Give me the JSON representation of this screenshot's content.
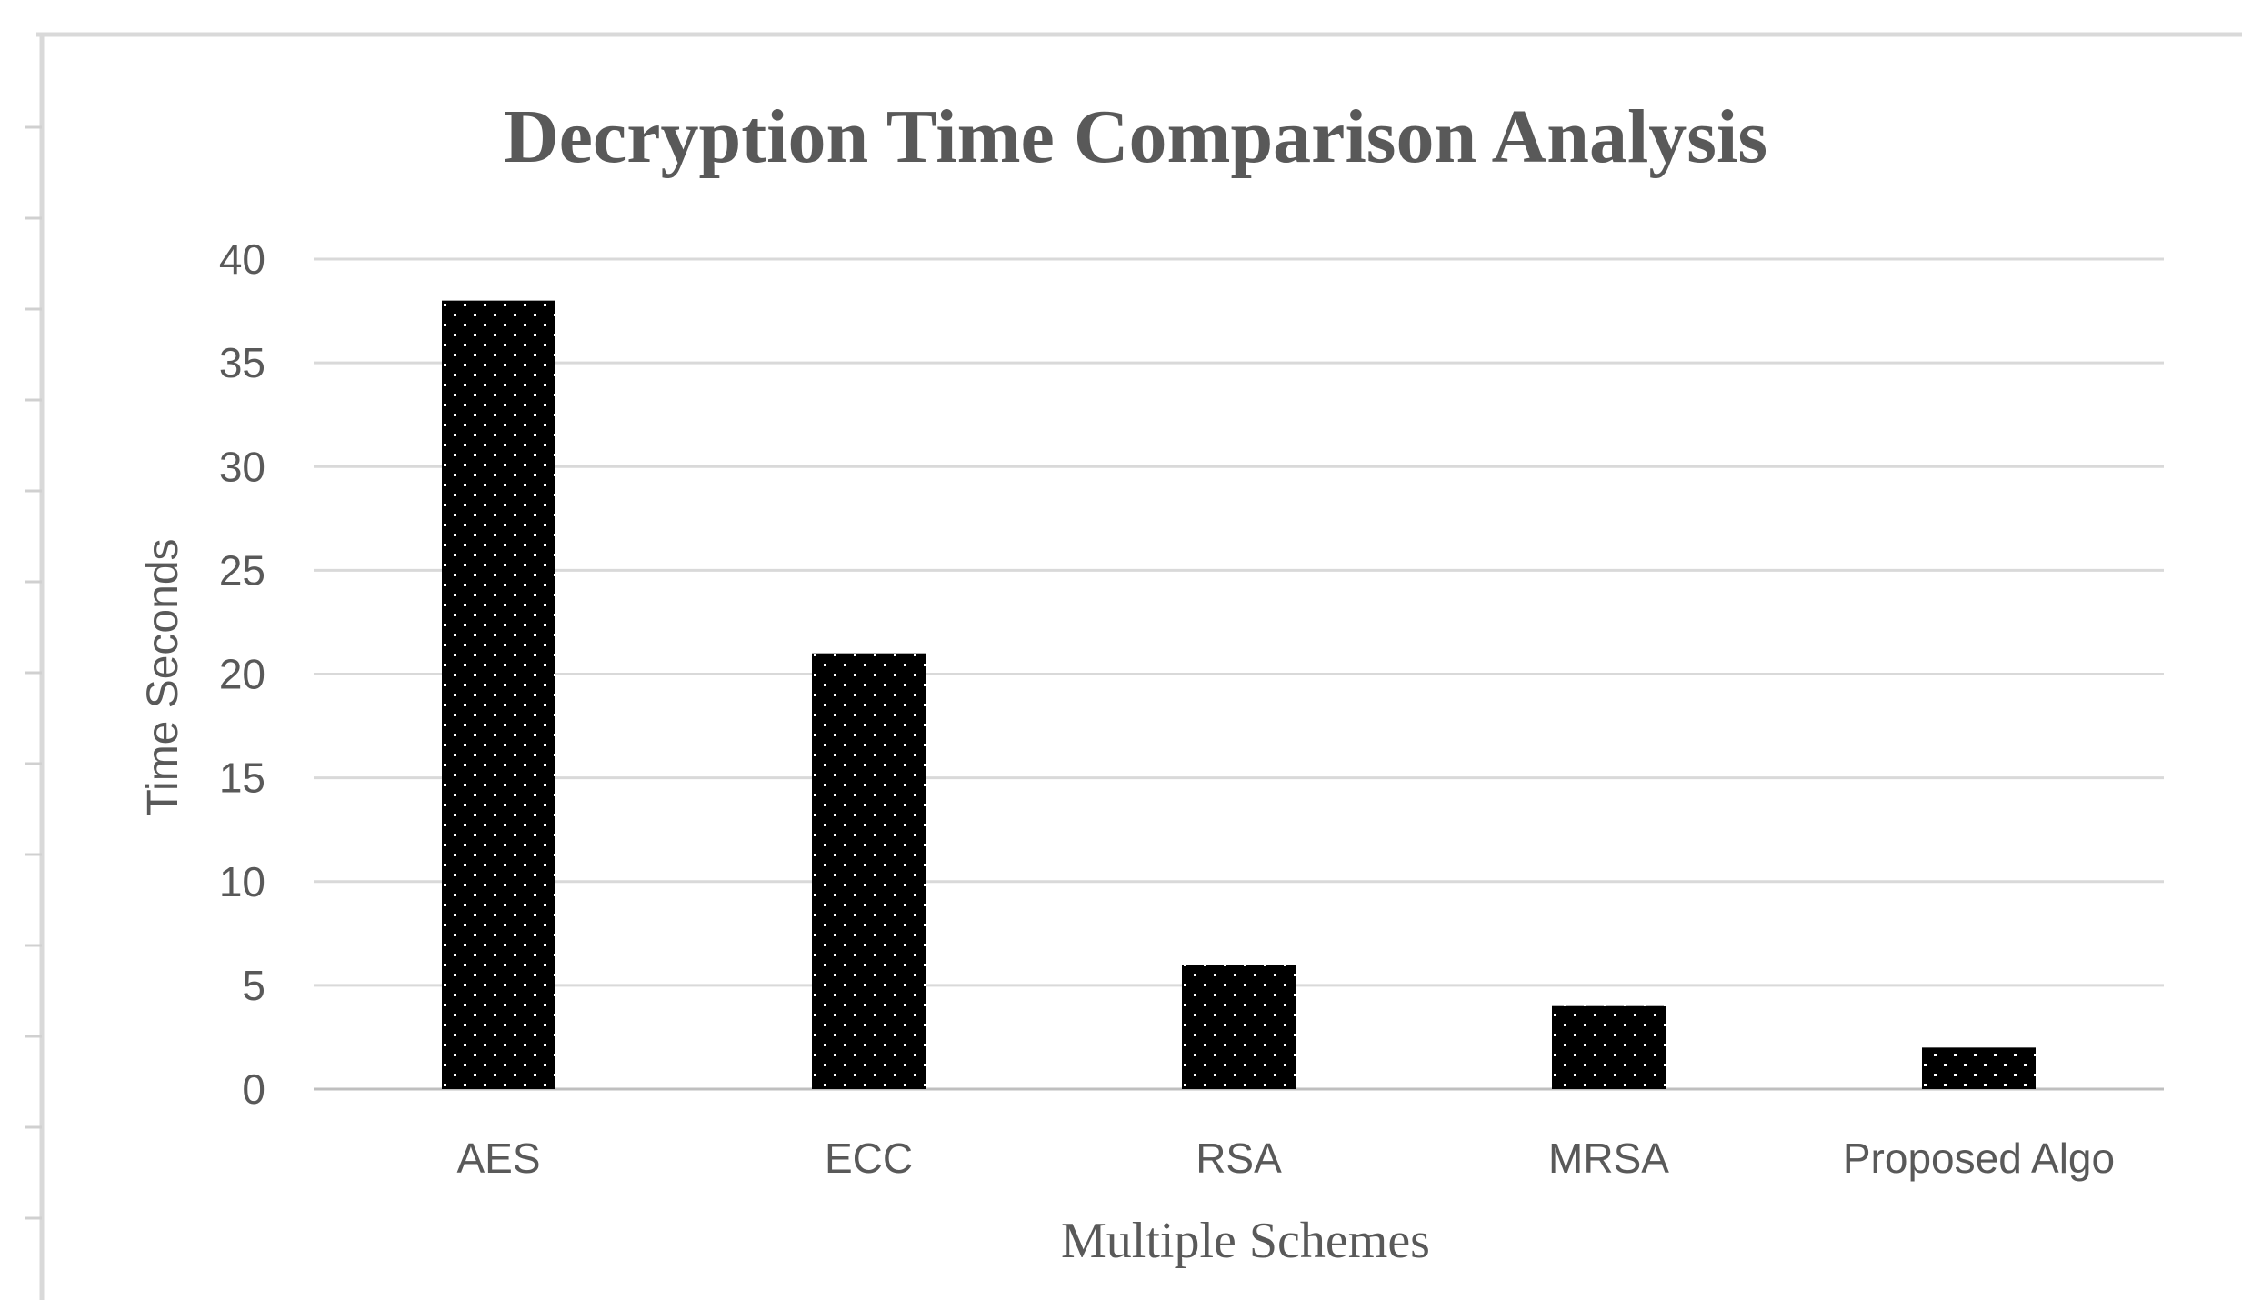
{
  "chart_data": {
    "type": "bar",
    "title": "Decryption Time Comparison Analysis",
    "xlabel": "Multiple Schemes",
    "ylabel": "Time Seconds",
    "categories": [
      "AES",
      "ECC",
      "RSA",
      "MRSA",
      "Proposed Algo"
    ],
    "values": [
      38,
      21,
      6,
      4,
      2
    ],
    "ylim": [
      0,
      40
    ],
    "yticks": [
      "0",
      "5",
      "10",
      "15",
      "20",
      "25",
      "30",
      "35",
      "40"
    ],
    "grid": true,
    "legend": "none",
    "bar_fill": "#000000",
    "bar_pattern": "white-dotted",
    "gridline_color": "#d9d9d9",
    "text_color": "#595959"
  }
}
